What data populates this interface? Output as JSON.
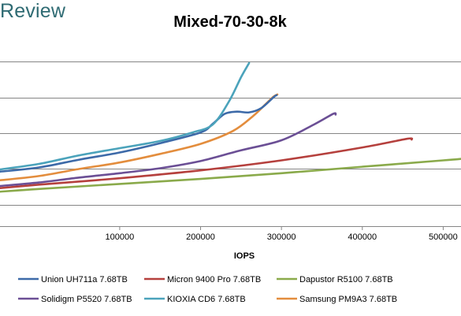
{
  "brand": {
    "text": "Review"
  },
  "chart_data": {
    "type": "line",
    "title": "Mixed-70-30-8k",
    "xlabel": "IOPS",
    "ylabel": "",
    "xlim": [
      -48000,
      522000
    ],
    "ylim": [
      0,
      25
    ],
    "x_ticks": [
      100000,
      200000,
      300000,
      400000,
      500000
    ],
    "x_tick_labels": [
      "100000",
      "200000",
      "300000",
      "400000",
      "500000"
    ],
    "y_gridlines": [
      3,
      8,
      13,
      18,
      23
    ],
    "grid": true,
    "legend_position": "bottom",
    "series": [
      {
        "name": "Union UH711a 7.68TB",
        "color": "#3d6aa8",
        "points": [
          [
            -50000,
            7.6
          ],
          [
            0,
            8.2
          ],
          [
            50000,
            9.3
          ],
          [
            100000,
            10.3
          ],
          [
            150000,
            11.6
          ],
          [
            200000,
            13.1
          ],
          [
            215000,
            14.3
          ],
          [
            230000,
            15.7
          ],
          [
            245000,
            16.0
          ],
          [
            260000,
            15.9
          ],
          [
            275000,
            16.5
          ],
          [
            290000,
            18.0
          ],
          [
            294000,
            18.3
          ]
        ]
      },
      {
        "name": "Micron 9400 Pro 7.68TB",
        "color": "#b5403d",
        "points": [
          [
            -50000,
            5.3
          ],
          [
            0,
            5.8
          ],
          [
            100000,
            6.7
          ],
          [
            200000,
            7.8
          ],
          [
            300000,
            9.2
          ],
          [
            400000,
            11.0
          ],
          [
            455000,
            12.2
          ],
          [
            461000,
            12.1
          ]
        ]
      },
      {
        "name": "Dapustor R5100 7.68TB",
        "color": "#8aaa4b",
        "points": [
          [
            -50000,
            4.8
          ],
          [
            0,
            5.2
          ],
          [
            100000,
            5.9
          ],
          [
            200000,
            6.6
          ],
          [
            300000,
            7.4
          ],
          [
            400000,
            8.3
          ],
          [
            500000,
            9.2
          ],
          [
            522000,
            9.4
          ]
        ]
      },
      {
        "name": "Solidigm P5520 7.68TB",
        "color": "#6b4f95",
        "points": [
          [
            -50000,
            5.6
          ],
          [
            0,
            6.1
          ],
          [
            50000,
            6.8
          ],
          [
            100000,
            7.4
          ],
          [
            150000,
            8.1
          ],
          [
            200000,
            9.1
          ],
          [
            250000,
            10.6
          ],
          [
            300000,
            12.0
          ],
          [
            340000,
            14.2
          ],
          [
            364000,
            15.7
          ],
          [
            367000,
            15.6
          ]
        ]
      },
      {
        "name": "KIOXIA CD6 7.68TB",
        "color": "#4ba3bb",
        "points": [
          [
            -50000,
            7.9
          ],
          [
            0,
            8.7
          ],
          [
            50000,
            9.9
          ],
          [
            100000,
            10.9
          ],
          [
            150000,
            11.9
          ],
          [
            190000,
            13.1
          ],
          [
            215000,
            14.2
          ],
          [
            235000,
            17.4
          ],
          [
            250000,
            20.8
          ],
          [
            260000,
            22.8
          ]
        ]
      },
      {
        "name": "Samsung PM9A3 7.68TB",
        "color": "#e38d3d",
        "points": [
          [
            -50000,
            6.4
          ],
          [
            0,
            7.0
          ],
          [
            50000,
            8.0
          ],
          [
            100000,
            8.9
          ],
          [
            150000,
            10.1
          ],
          [
            200000,
            11.5
          ],
          [
            240000,
            13.3
          ],
          [
            265000,
            15.4
          ],
          [
            280000,
            17.0
          ],
          [
            290000,
            18.1
          ],
          [
            295000,
            18.4
          ]
        ]
      }
    ]
  }
}
